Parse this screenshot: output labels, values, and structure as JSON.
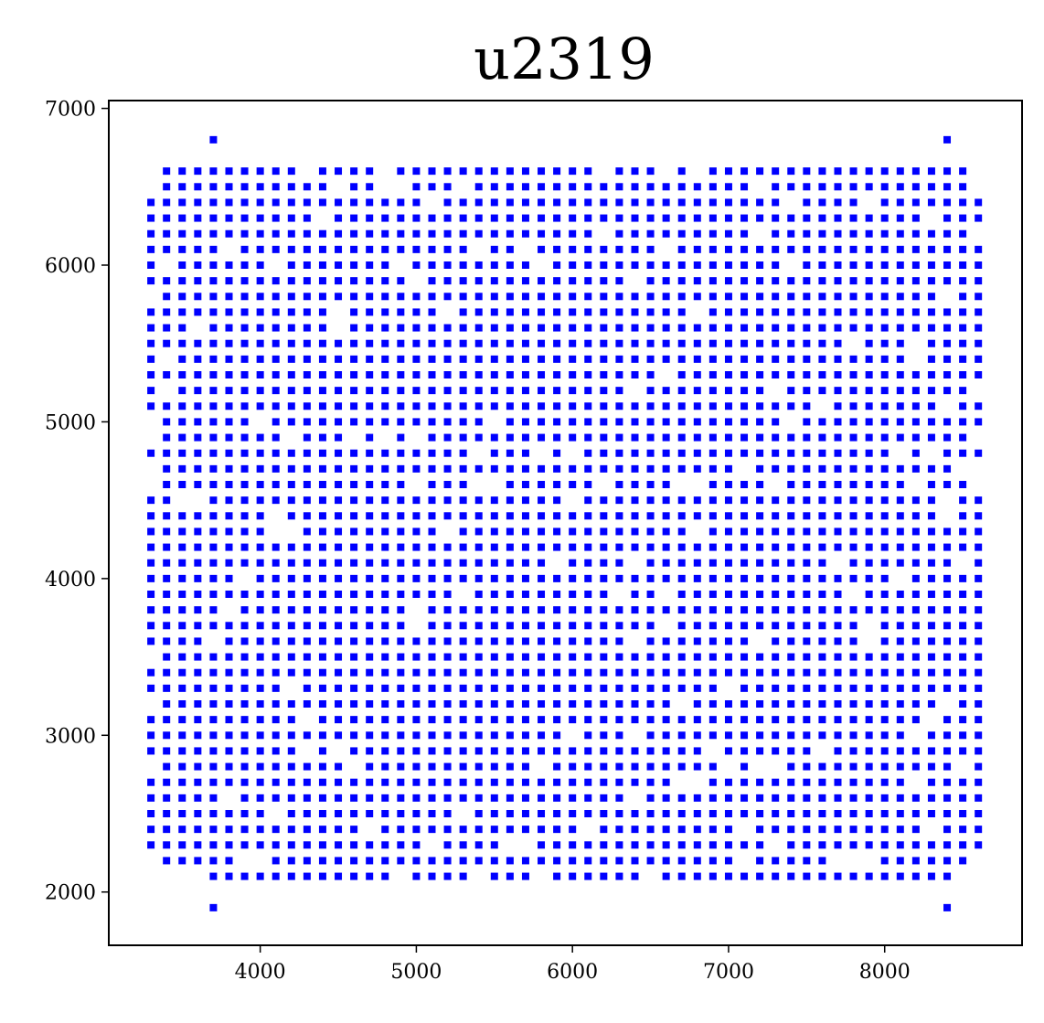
{
  "chart_data": {
    "type": "scatter",
    "title": "u2319",
    "xlabel": "",
    "ylabel": "",
    "xlim": [
      3030,
      8880
    ],
    "ylim": [
      1660,
      7050
    ],
    "xticks": [
      4000,
      5000,
      6000,
      7000,
      8000
    ],
    "yticks": [
      2000,
      3000,
      4000,
      5000,
      6000,
      7000
    ],
    "xtick_labels": [
      "4000",
      "5000",
      "6000",
      "7000",
      "8000"
    ],
    "ytick_labels": [
      "2000",
      "3000",
      "4000",
      "5000",
      "6000",
      "7000"
    ],
    "grid": false,
    "marker": "square",
    "marker_color": "#0000ff",
    "series": [
      {
        "grid_pattern": {
          "x_start": 3300,
          "x_end": 8600,
          "x_step": 100,
          "y_start": 2100,
          "y_end": 6600,
          "y_step": 100,
          "note_shape": "rectangular grid with clipped corners; scattered missing points"
        },
        "extra_points": [
          [
            3700,
            6800
          ],
          [
            8400,
            6800
          ],
          [
            3700,
            1900
          ],
          [
            8400,
            1900
          ]
        ]
      }
    ]
  }
}
